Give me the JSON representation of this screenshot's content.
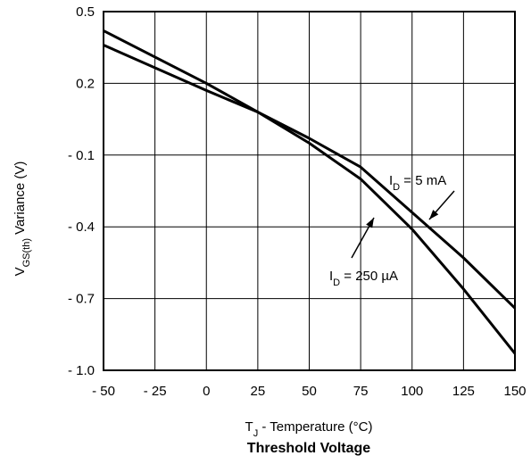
{
  "chart_data": {
    "type": "line",
    "title": "Threshold Voltage",
    "xlabel": {
      "main": "T",
      "sub": "J",
      "rest": " - Temperature (°C)"
    },
    "ylabel": {
      "main": "V",
      "sub": "GS(th)",
      "rest": " Variance (V)"
    },
    "xlim": [
      -50,
      150
    ],
    "ylim": [
      -1.0,
      0.5
    ],
    "xticks": [
      -50,
      -25,
      0,
      25,
      50,
      75,
      100,
      125,
      150
    ],
    "yticks": [
      -1.0,
      -0.7,
      -0.4,
      -0.1,
      0.2,
      0.5
    ],
    "xtick_labels": [
      "- 50",
      "- 25",
      "0",
      "25",
      "50",
      "75",
      "100",
      "125",
      "150"
    ],
    "ytick_labels": [
      "- 1.0",
      "- 0.7",
      "- 0.4",
      "- 0.1",
      "0.2",
      "0.5"
    ],
    "grid": true,
    "series": [
      {
        "name": "ID = 250 µA",
        "x": [
          -50,
          0,
          25,
          50,
          75,
          100,
          125,
          150
        ],
        "y": [
          0.42,
          0.2,
          0.08,
          -0.05,
          -0.2,
          -0.41,
          -0.66,
          -0.93
        ]
      },
      {
        "name": "ID = 5 mA",
        "x": [
          -50,
          0,
          25,
          50,
          75,
          100,
          125,
          150
        ],
        "y": [
          0.36,
          0.17,
          0.08,
          -0.03,
          -0.15,
          -0.34,
          -0.53,
          -0.74
        ]
      }
    ],
    "annotations": [
      {
        "series": 1,
        "main": "I",
        "sub": "D",
        "rest": " =  5 mA"
      },
      {
        "series": 0,
        "main": "I",
        "sub": "D",
        "rest": " = 250 µA"
      }
    ]
  }
}
